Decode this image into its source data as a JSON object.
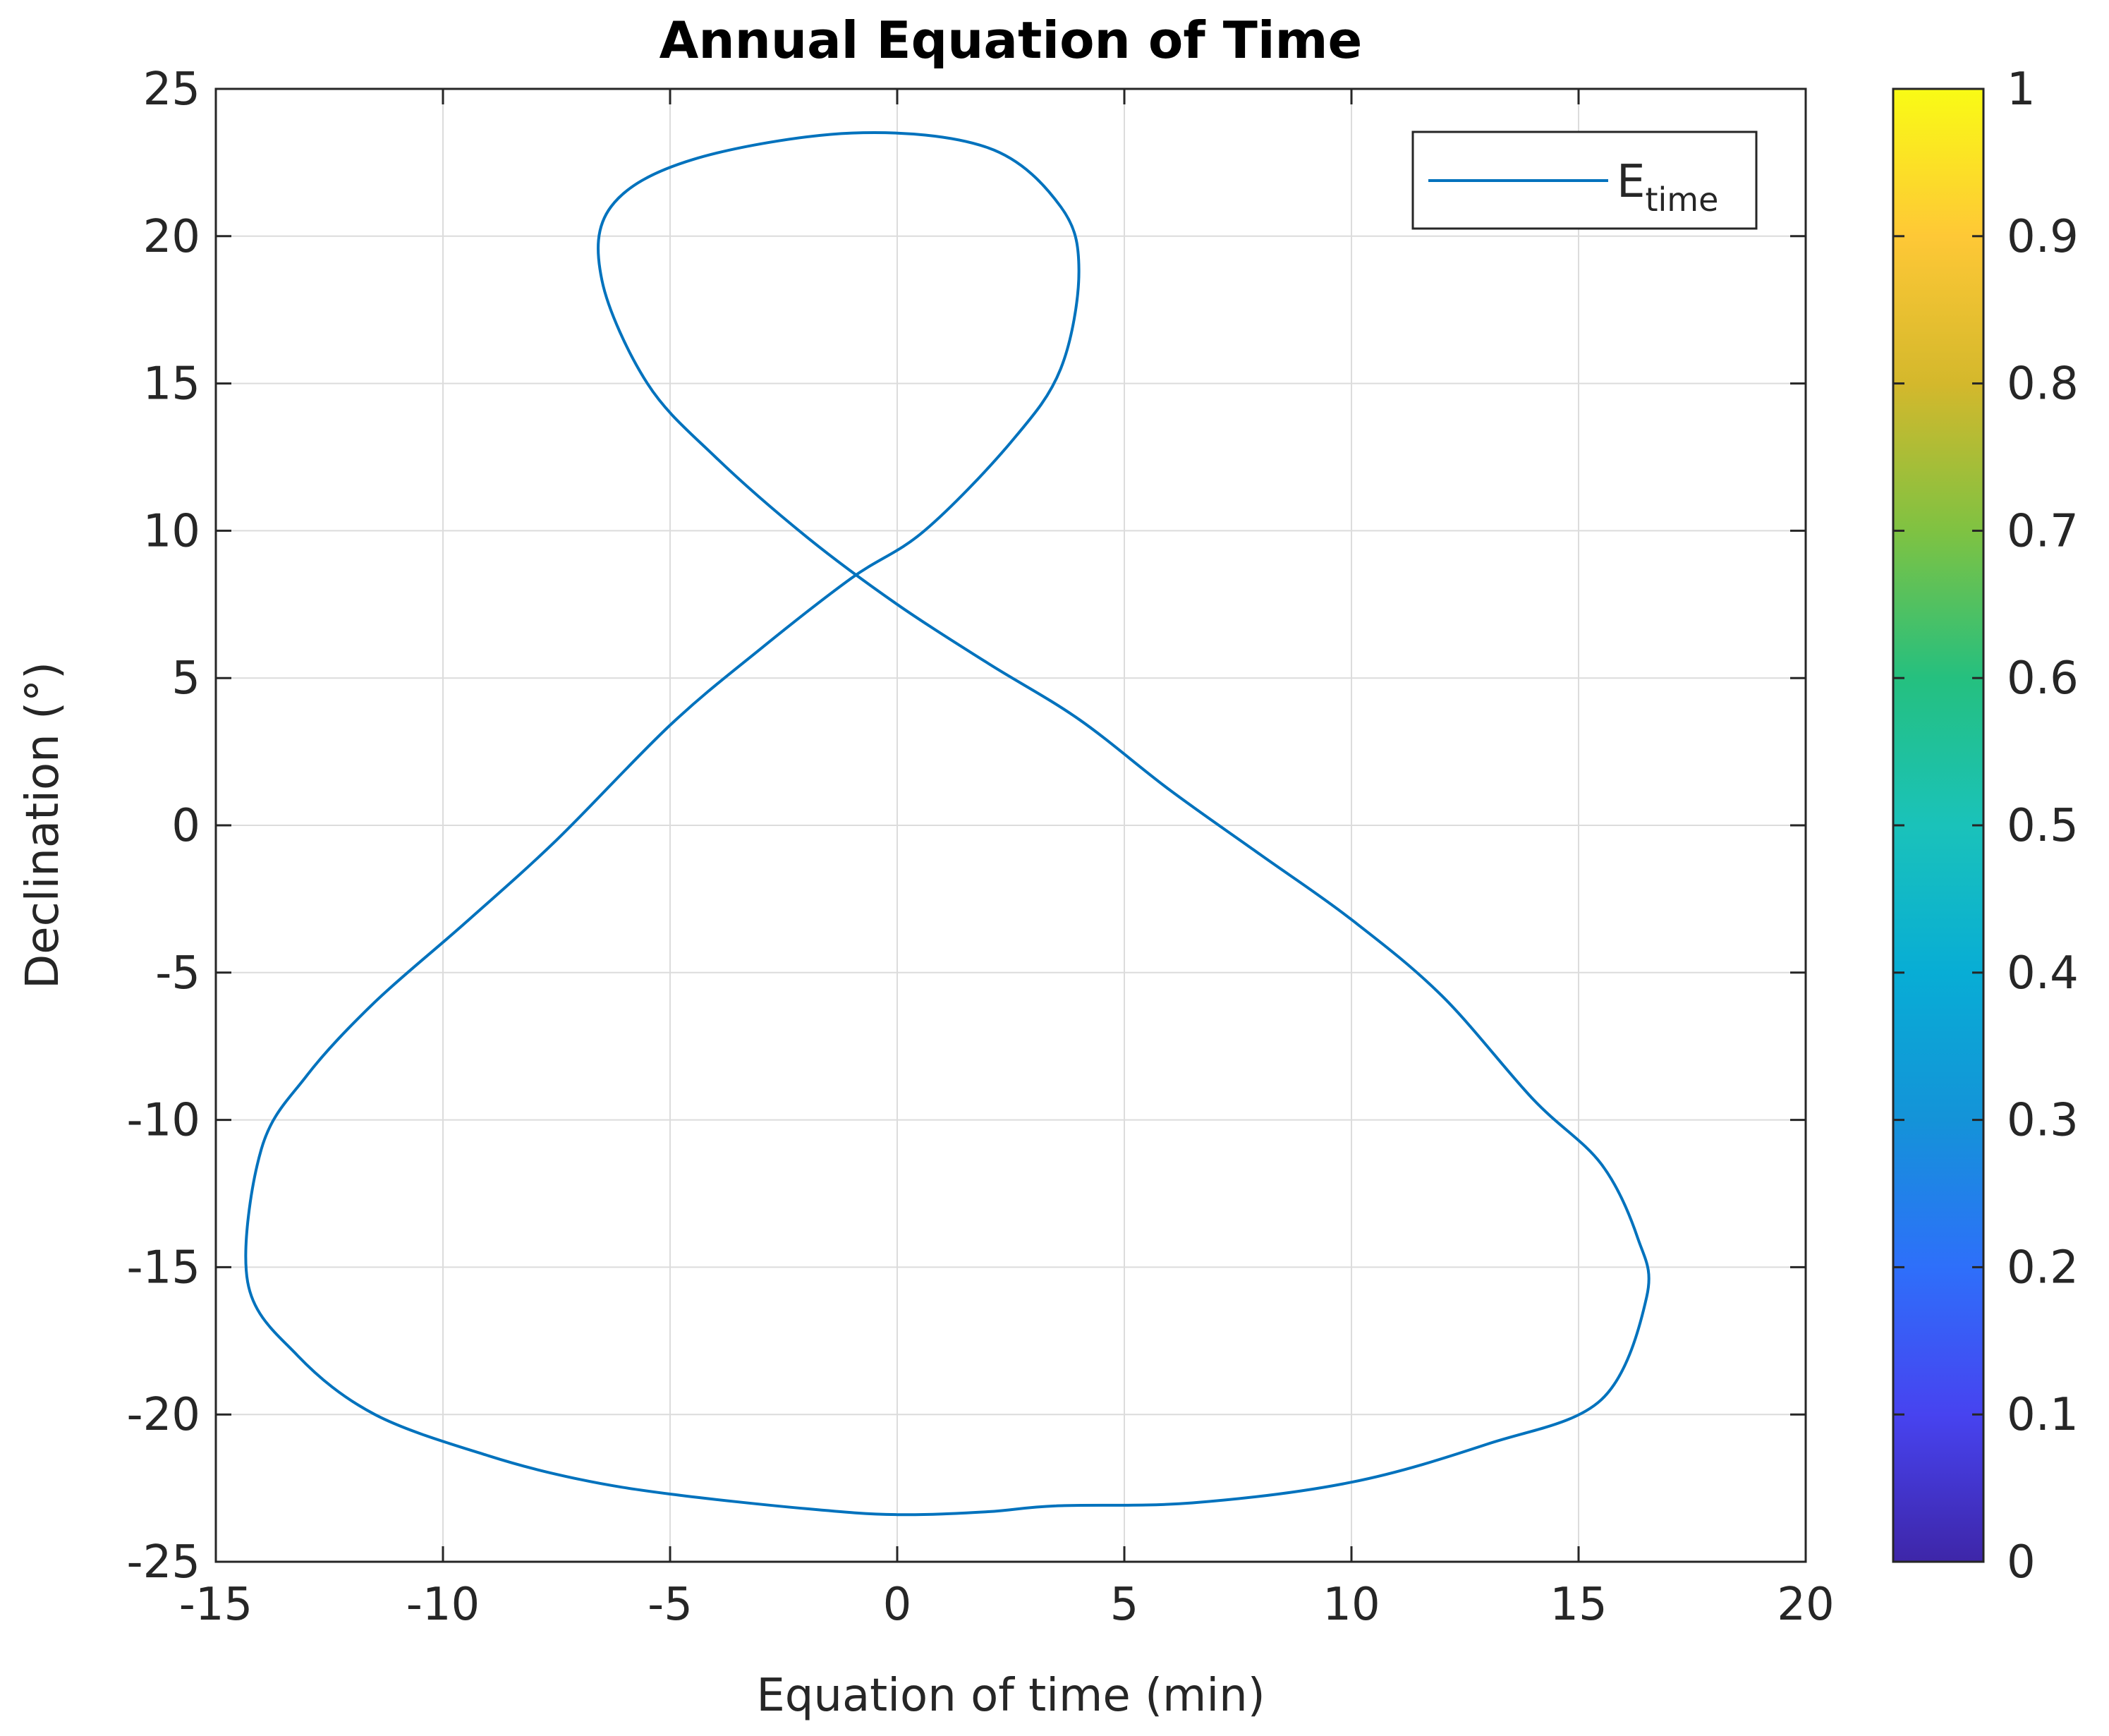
{
  "chart_data": {
    "type": "line",
    "title": "Annual Equation of Time",
    "xlabel": "Equation of time (min)",
    "ylabel": "Declination (°)",
    "xlim": [
      -15,
      20
    ],
    "ylim": [
      -25,
      25
    ],
    "xticks": [
      -15,
      -10,
      -5,
      0,
      5,
      10,
      15,
      20
    ],
    "yticks": [
      -25,
      -20,
      -15,
      -10,
      -5,
      0,
      5,
      10,
      15,
      20,
      25
    ],
    "grid": true,
    "legend": {
      "position": "top-right",
      "label_main": "E",
      "label_sub": "time"
    },
    "series": [
      {
        "name": "E_time",
        "color": "#0072BD",
        "points": [
          [
            3.5,
            -23.1
          ],
          [
            2.0,
            -23.3
          ],
          [
            0.0,
            -23.4
          ],
          [
            -2.0,
            -23.2
          ],
          [
            -5.0,
            -22.7
          ],
          [
            -7.0,
            -22.2
          ],
          [
            -9.0,
            -21.4
          ],
          [
            -11.5,
            -20.0
          ],
          [
            -13.2,
            -18.0
          ],
          [
            -14.3,
            -15.5
          ],
          [
            -14.0,
            -11.0
          ],
          [
            -13.0,
            -8.5
          ],
          [
            -11.5,
            -6.0
          ],
          [
            -9.5,
            -3.3
          ],
          [
            -7.5,
            -0.5
          ],
          [
            -5.0,
            3.4
          ],
          [
            -3.0,
            6.0
          ],
          [
            -1.0,
            8.4
          ],
          [
            0.6,
            10.0
          ],
          [
            2.5,
            13.0
          ],
          [
            3.6,
            15.5
          ],
          [
            4.0,
            18.8
          ],
          [
            3.6,
            21.0
          ],
          [
            2.0,
            23.0
          ],
          [
            -1.0,
            23.5
          ],
          [
            -4.5,
            22.6
          ],
          [
            -6.3,
            21.0
          ],
          [
            -6.5,
            18.5
          ],
          [
            -5.5,
            15.0
          ],
          [
            -4.0,
            12.5
          ],
          [
            -2.0,
            9.8
          ],
          [
            0.0,
            7.5
          ],
          [
            2.0,
            5.5
          ],
          [
            4.0,
            3.6
          ],
          [
            6.0,
            1.2
          ],
          [
            8.0,
            -1.0
          ],
          [
            10.0,
            -3.2
          ],
          [
            12.0,
            -5.8
          ],
          [
            14.0,
            -9.3
          ],
          [
            15.5,
            -11.5
          ],
          [
            16.3,
            -14.0
          ],
          [
            16.5,
            -16.0
          ],
          [
            15.5,
            -19.5
          ],
          [
            13.0,
            -21.0
          ],
          [
            10.0,
            -22.3
          ],
          [
            6.5,
            -23.0
          ]
        ]
      }
    ],
    "colorbar": {
      "ticks": [
        0,
        0.1,
        0.2,
        0.3,
        0.4,
        0.5,
        0.6,
        0.7,
        0.8,
        0.9,
        1
      ],
      "stops": [
        "#3E26A8",
        "#4743F0",
        "#2E6FFA",
        "#1493D8",
        "#08ADD5",
        "#1AC2BA",
        "#25C07F",
        "#7FC242",
        "#D4B82C",
        "#FEC836",
        "#F9FB15"
      ]
    }
  }
}
